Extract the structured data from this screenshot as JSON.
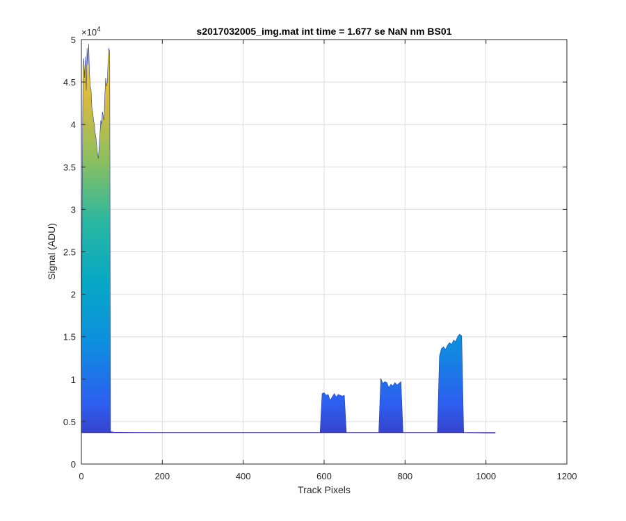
{
  "chart_data": {
    "type": "area",
    "title": "s2017032005_img.mat int time = 1.677 se  NaN nm BS01",
    "xlabel": "Track Pixels",
    "ylabel": "Signal (ADU)",
    "xlim": [
      0,
      1200
    ],
    "ylim": [
      0,
      50000
    ],
    "xticks": [
      0,
      200,
      400,
      600,
      800,
      1000,
      1200
    ],
    "xtick_labels": [
      "0",
      "200",
      "400",
      "600",
      "800",
      "1000",
      "1200"
    ],
    "yticks": [
      0,
      5000,
      10000,
      15000,
      20000,
      25000,
      30000,
      35000,
      40000,
      45000,
      50000
    ],
    "ytick_labels": [
      "0",
      "0.5",
      "1",
      "1.5",
      "2",
      "2.5",
      "3",
      "3.5",
      "4",
      "4.5",
      "5"
    ],
    "y_exponent_label": "×10",
    "y_exponent_power": "4",
    "grid": true,
    "baseline": 3700,
    "colormap": [
      "#3e26a8",
      "#2d5ff0",
      "#0d8fde",
      "#06a8c4",
      "#2ab7a0",
      "#8bbf5f",
      "#d8ba3f",
      "#f9d830"
    ],
    "series": [
      {
        "x": [
          0,
          1,
          2,
          4,
          6,
          8,
          10,
          12,
          14,
          16,
          18,
          20,
          22,
          24,
          26,
          28,
          30,
          32,
          34,
          36,
          38,
          40,
          42,
          44,
          46,
          48,
          50,
          52,
          54,
          56,
          58,
          60,
          62,
          64,
          66,
          68,
          70,
          72,
          74,
          80,
          120,
          200,
          300,
          400,
          500,
          560,
          590
        ],
        "y": [
          3700,
          17500,
          32000,
          46500,
          47800,
          45500,
          48000,
          44000,
          49000,
          47000,
          49500,
          46000,
          44500,
          44000,
          42000,
          41500,
          40500,
          40000,
          39000,
          38500,
          37500,
          36500,
          36000,
          37500,
          39000,
          40500,
          40000,
          41500,
          41000,
          40500,
          43500,
          45500,
          44500,
          45000,
          47500,
          49000,
          48500,
          3900,
          3800,
          3750,
          3720,
          3700,
          3700,
          3700,
          3700,
          3700,
          3700
        ]
      },
      {
        "x": [
          590,
          595,
          600,
          605,
          610,
          615,
          620,
          625,
          630,
          635,
          640,
          645,
          650,
          655,
          660,
          700,
          735
        ],
        "y": [
          3700,
          8300,
          8400,
          8100,
          8200,
          7500,
          7900,
          8300,
          7900,
          8200,
          8100,
          8000,
          8100,
          3700,
          3700,
          3700,
          3700
        ]
      },
      {
        "x": [
          735,
          740,
          745,
          750,
          755,
          760,
          765,
          770,
          775,
          780,
          785,
          790,
          795,
          800,
          840,
          880
        ],
        "y": [
          3700,
          10100,
          9500,
          9700,
          9600,
          9000,
          9400,
          9200,
          9600,
          9300,
          9500,
          9700,
          3700,
          3700,
          3700,
          3700
        ]
      },
      {
        "x": [
          880,
          885,
          890,
          895,
          900,
          905,
          910,
          915,
          920,
          925,
          930,
          935,
          940,
          945,
          1000,
          1023
        ],
        "y": [
          3700,
          12700,
          13600,
          13800,
          13500,
          14000,
          14300,
          14100,
          14600,
          14400,
          15000,
          15300,
          15100,
          3700,
          3650,
          3650
        ]
      }
    ]
  }
}
